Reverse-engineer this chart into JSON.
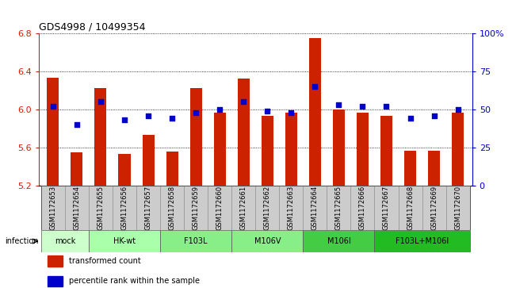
{
  "title": "GDS4998 / 10499354",
  "samples": [
    "GSM1172653",
    "GSM1172654",
    "GSM1172655",
    "GSM1172656",
    "GSM1172657",
    "GSM1172658",
    "GSM1172659",
    "GSM1172660",
    "GSM1172661",
    "GSM1172662",
    "GSM1172663",
    "GSM1172664",
    "GSM1172665",
    "GSM1172666",
    "GSM1172667",
    "GSM1172668",
    "GSM1172669",
    "GSM1172670"
  ],
  "bar_values": [
    6.33,
    5.55,
    6.22,
    5.53,
    5.73,
    5.56,
    6.22,
    5.97,
    6.32,
    5.93,
    5.97,
    6.75,
    6.0,
    5.97,
    5.93,
    5.57,
    5.57,
    5.97
  ],
  "dot_values": [
    52,
    40,
    55,
    43,
    46,
    44,
    48,
    50,
    55,
    49,
    48,
    65,
    53,
    52,
    52,
    44,
    46,
    50
  ],
  "bar_color": "#cc2200",
  "dot_color": "#0000cc",
  "ylim_left": [
    5.2,
    6.8
  ],
  "ylim_right": [
    0,
    100
  ],
  "yticks_left": [
    5.2,
    5.6,
    6.0,
    6.4,
    6.8
  ],
  "yticks_right": [
    0,
    25,
    50,
    75,
    100
  ],
  "groups": [
    {
      "label": "mock",
      "start": 0,
      "end": 2,
      "color": "#ccffcc"
    },
    {
      "label": "HK-wt",
      "start": 2,
      "end": 5,
      "color": "#aaffaa"
    },
    {
      "label": "F103L",
      "start": 5,
      "end": 8,
      "color": "#88ee88"
    },
    {
      "label": "M106V",
      "start": 8,
      "end": 11,
      "color": "#88ee88"
    },
    {
      "label": "M106I",
      "start": 11,
      "end": 14,
      "color": "#44cc44"
    },
    {
      "label": "F103L+M106I",
      "start": 14,
      "end": 18,
      "color": "#22bb22"
    }
  ],
  "infection_label": "infection",
  "legend_bar_label": "transformed count",
  "legend_dot_label": "percentile rank within the sample",
  "bg_color": "#ffffff",
  "tick_label_color_left": "#cc2200",
  "tick_label_color_right": "#0000cc",
  "bar_width": 0.5,
  "sample_cell_color": "#cccccc",
  "title_fontsize": 9,
  "tick_fontsize": 8,
  "label_fontsize": 7,
  "sample_fontsize": 6
}
